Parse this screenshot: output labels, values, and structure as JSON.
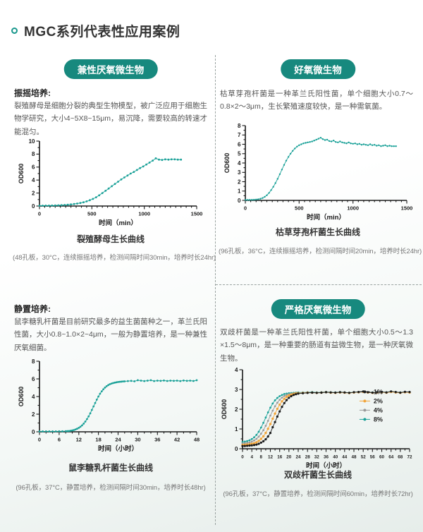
{
  "page": {
    "title": "MGC系列代表性应用案例"
  },
  "colors": {
    "teal": "#17897e",
    "curve_teal": "#1aa198",
    "orange": "#f2a53a",
    "gray": "#999999",
    "black": "#1a1a1a"
  },
  "sections": {
    "facultative": {
      "badge": "兼性厌氧微生物",
      "heading": "振摇培养:",
      "body": "裂殖酵母是细胞分裂的典型生物模型，被广泛应用于细胞生物学研究，大小4~5X8~15μm，易沉降，需要较高的转速才能混匀。",
      "caption": "裂殖酵母生长曲线",
      "note": "(48孔板，30°C，连续振摇培养，检测间隔时间30min，培养时长24hr)"
    },
    "aerobic": {
      "badge": "好氧微生物",
      "body": "枯草芽孢杆菌是一种革兰氏阳性菌，单个细胞大小0.7～0.8×2～3μm，生长繁殖速度较快，是一种需氧菌。",
      "caption": "枯草芽孢杆菌生长曲线",
      "note": "(96孔板，36°C，连续振摇培养，检测间隔时间20min，培养时长24hr)"
    },
    "static_culture": {
      "heading": "静置培养:",
      "body": "鼠李糖乳杆菌是目前研究最多的益生菌菌种之一，革兰氏阳性菌，大小0.8~1.0×2~4μm，一般为静置培养，是一种兼性厌氧细菌。",
      "caption": "鼠李糖乳杆菌生长曲线",
      "note": "(96孔板，37°C，静置培养，检测间隔时间30min，培养时长48hr)"
    },
    "anaerobic": {
      "badge": "严格厌氧微生物",
      "body": "双歧杆菌是一种革兰氏阳性杆菌，单个细胞大小0.5～1.3 ×1.5～8μm，是一种重要的肠道有益微生物，是一种厌氧微生物。",
      "caption": "双歧杆菌生长曲线",
      "note": "(96孔板，37°C，静置培养，检测间隔时间60min，培养时长72hr)"
    }
  },
  "chart_data": [
    {
      "id": "fission-yeast",
      "type": "scatter",
      "title": "裂殖酵母生长曲线",
      "xlabel": "时间（min）",
      "ylabel": "OD600",
      "xlim": [
        0,
        1500
      ],
      "ylim": [
        0,
        10
      ],
      "xmajor": 500,
      "xminor": 50,
      "ymajor": 2,
      "yminor": 1,
      "legend": false,
      "series": [
        {
          "name": "OD600",
          "color": "#1aa198",
          "r": 1.4,
          "x": [
            0,
            30,
            60,
            90,
            120,
            150,
            180,
            210,
            240,
            270,
            300,
            330,
            360,
            390,
            420,
            450,
            480,
            510,
            540,
            570,
            600,
            630,
            660,
            690,
            720,
            750,
            780,
            810,
            840,
            870,
            900,
            930,
            960,
            990,
            1020,
            1050,
            1080,
            1110,
            1140,
            1170,
            1200,
            1230,
            1260,
            1290,
            1320,
            1350
          ],
          "y": [
            0.05,
            0.05,
            0.06,
            0.07,
            0.08,
            0.09,
            0.11,
            0.13,
            0.16,
            0.2,
            0.25,
            0.31,
            0.38,
            0.47,
            0.58,
            0.72,
            0.9,
            1.1,
            1.35,
            1.65,
            2.0,
            2.35,
            2.7,
            3.05,
            3.4,
            3.75,
            4.1,
            4.4,
            4.7,
            5.0,
            5.25,
            5.55,
            5.85,
            6.1,
            6.4,
            6.7,
            7.0,
            7.35,
            7.15,
            7.1,
            7.2,
            7.15,
            7.2,
            7.2,
            7.15,
            7.15
          ]
        }
      ]
    },
    {
      "id": "bacillus-subtilis",
      "type": "scatter",
      "title": "枯草芽孢杆菌生长曲线",
      "xlabel": "时间（min）",
      "ylabel": "OD600",
      "xlim": [
        0,
        1500
      ],
      "ylim": [
        0,
        8
      ],
      "xmajor": 500,
      "xminor": 50,
      "ymajor": 1,
      "yminor": 0.5,
      "legend": false,
      "series": [
        {
          "name": "OD600",
          "color": "#1aa198",
          "r": 1.2,
          "x": [
            0,
            20,
            40,
            60,
            80,
            100,
            120,
            140,
            160,
            180,
            200,
            220,
            240,
            260,
            280,
            300,
            320,
            340,
            360,
            380,
            400,
            420,
            440,
            460,
            480,
            500,
            520,
            540,
            560,
            580,
            600,
            620,
            640,
            660,
            680,
            700,
            720,
            740,
            760,
            780,
            800,
            820,
            840,
            860,
            880,
            900,
            920,
            940,
            960,
            980,
            1000,
            1020,
            1040,
            1060,
            1080,
            1100,
            1120,
            1140,
            1160,
            1180,
            1200,
            1220,
            1240,
            1260,
            1280,
            1300,
            1320,
            1340,
            1360,
            1380,
            1400
          ],
          "y": [
            0.05,
            0.05,
            0.05,
            0.06,
            0.07,
            0.09,
            0.12,
            0.17,
            0.25,
            0.38,
            0.55,
            0.8,
            1.1,
            1.45,
            1.85,
            2.3,
            2.8,
            3.3,
            3.8,
            4.25,
            4.65,
            5.0,
            5.3,
            5.55,
            5.75,
            5.9,
            6.0,
            6.1,
            6.15,
            6.2,
            6.25,
            6.3,
            6.4,
            6.5,
            6.6,
            6.7,
            6.55,
            6.45,
            6.5,
            6.35,
            6.3,
            6.4,
            6.25,
            6.2,
            6.3,
            6.2,
            6.15,
            6.1,
            6.2,
            6.1,
            6.05,
            6.1,
            6.0,
            6.05,
            5.95,
            6.0,
            5.95,
            5.9,
            6.0,
            5.9,
            5.95,
            5.85,
            5.9,
            5.8,
            5.85,
            5.9,
            5.8,
            5.85,
            5.8,
            5.8,
            5.8
          ]
        }
      ]
    },
    {
      "id": "lactobacillus-rhamnosus",
      "type": "scatter",
      "title": "鼠李糖乳杆菌生长曲线",
      "xlabel": "时间（小时）",
      "ylabel": "OD600",
      "xlim": [
        0,
        48
      ],
      "ylim": [
        0,
        8
      ],
      "xmajor": 6,
      "xminor": 2,
      "ymajor": 2,
      "yminor": 1,
      "legend": false,
      "series": [
        {
          "name": "OD600",
          "color": "#1aa198",
          "r": 1.4,
          "x": [
            0,
            1,
            2,
            3,
            4,
            5,
            6,
            7,
            8,
            8.5,
            9,
            9.5,
            10,
            10.5,
            11,
            11.5,
            12,
            12.5,
            13,
            13.5,
            14,
            14.5,
            15,
            15.5,
            16,
            16.5,
            17,
            17.5,
            18,
            18.5,
            19,
            19.5,
            20,
            20.5,
            21,
            21.5,
            22,
            22.5,
            23,
            23.5,
            24,
            24.5,
            25,
            25.5,
            26,
            27,
            28,
            29,
            30,
            31,
            32,
            33,
            34,
            35,
            36,
            37,
            38,
            39,
            40,
            41,
            42,
            43,
            44,
            45,
            46,
            47,
            48
          ],
          "y": [
            0.05,
            0.05,
            0.05,
            0.05,
            0.05,
            0.05,
            0.06,
            0.06,
            0.07,
            0.08,
            0.09,
            0.12,
            0.16,
            0.2,
            0.27,
            0.35,
            0.45,
            0.58,
            0.73,
            0.93,
            1.16,
            1.44,
            1.75,
            2.1,
            2.48,
            2.88,
            3.27,
            3.65,
            4.0,
            4.32,
            4.59,
            4.82,
            5.02,
            5.17,
            5.3,
            5.4,
            5.47,
            5.53,
            5.58,
            5.62,
            5.65,
            5.67,
            5.69,
            5.71,
            5.72,
            5.75,
            5.78,
            5.73,
            5.85,
            5.8,
            5.75,
            5.8,
            5.85,
            5.75,
            5.8,
            5.78,
            5.82,
            5.76,
            5.8,
            5.78,
            5.8,
            5.75,
            5.82,
            5.78,
            5.8,
            5.76,
            5.85
          ]
        }
      ]
    },
    {
      "id": "bifidobacterium",
      "type": "scatter",
      "title": "双歧杆菌生长曲线",
      "xlabel": "时间（小时）",
      "ylabel": "OD600",
      "xlim": [
        0,
        72
      ],
      "ylim": [
        0,
        4
      ],
      "xmajor": 4,
      "xminor": 2,
      "ymajor": 1,
      "yminor": 0.5,
      "legend": true,
      "x_shared": [
        0,
        1,
        2,
        3,
        4,
        5,
        6,
        7,
        8,
        9,
        10,
        11,
        12,
        13,
        14,
        15,
        16,
        17,
        18,
        19,
        20,
        21,
        22,
        23,
        24,
        26,
        28,
        30,
        32,
        34,
        36,
        38,
        40,
        42,
        44,
        46,
        48,
        50,
        52,
        54,
        56,
        58,
        60,
        62,
        64,
        66,
        68,
        70,
        72
      ],
      "series": [
        {
          "name": "1%",
          "color": "#1a1a1a",
          "r": 1.6,
          "x": [
            0,
            1,
            2,
            3,
            4,
            5,
            6,
            7,
            8,
            9,
            10,
            11,
            12,
            13,
            14,
            15,
            16,
            17,
            18,
            19,
            20,
            21,
            22,
            23,
            24,
            26,
            28,
            30,
            32,
            34,
            36,
            38,
            40,
            42,
            44,
            46,
            48,
            50,
            52,
            54,
            56,
            58,
            60,
            62,
            64,
            66,
            68,
            70,
            72
          ],
          "y": [
            0.14,
            0.14,
            0.15,
            0.16,
            0.17,
            0.19,
            0.21,
            0.25,
            0.31,
            0.38,
            0.48,
            0.62,
            0.8,
            1.09,
            1.35,
            1.63,
            1.89,
            2.12,
            2.31,
            2.46,
            2.58,
            2.66,
            2.72,
            2.76,
            2.79,
            2.81,
            2.83,
            2.84,
            2.83,
            2.84,
            2.86,
            2.85,
            2.84,
            2.86,
            2.85,
            2.83,
            2.86,
            2.87,
            2.9,
            2.86,
            2.84,
            2.86,
            2.88,
            2.85,
            2.9,
            2.87,
            2.84,
            2.88,
            2.87
          ]
        },
        {
          "name": "2%",
          "color": "#f2a53a",
          "r": 1.7,
          "x": [
            0,
            1,
            2,
            3,
            4,
            5,
            6,
            7,
            8,
            9,
            10,
            11,
            12,
            13,
            14,
            15,
            16,
            17,
            18,
            19,
            20,
            21,
            22,
            23,
            24,
            26,
            28,
            30,
            32,
            34,
            36,
            38,
            40,
            42,
            44,
            46,
            48,
            50,
            52,
            54,
            56,
            58,
            60,
            62,
            64,
            66,
            68,
            70,
            72
          ],
          "y": [
            0.19,
            0.2,
            0.21,
            0.23,
            0.25,
            0.28,
            0.33,
            0.4,
            0.5,
            0.63,
            0.8,
            1.01,
            1.25,
            1.52,
            1.78,
            2.02,
            2.23,
            2.4,
            2.53,
            2.63,
            2.7,
            2.74,
            2.78,
            2.8,
            2.81,
            2.82,
            2.84,
            2.84,
            2.83,
            2.84,
            2.86,
            2.84,
            2.83,
            2.85,
            2.84,
            2.82,
            2.85,
            2.86,
            2.88,
            2.85,
            2.83,
            2.85,
            2.86,
            2.84,
            2.88,
            2.85,
            2.83,
            2.86,
            2.85
          ]
        },
        {
          "name": "4%",
          "color": "#999999",
          "r": 1.4,
          "x": [
            0,
            1,
            2,
            3,
            4,
            5,
            6,
            7,
            8,
            9,
            10,
            11,
            12,
            13,
            14,
            15,
            16,
            17,
            18,
            19,
            20,
            21,
            22,
            23,
            24,
            26,
            28,
            30,
            32,
            34,
            36,
            38,
            40,
            42,
            44,
            46,
            48,
            50,
            52,
            54,
            56,
            58,
            60,
            62,
            64,
            66,
            68,
            70,
            72
          ],
          "y": [
            0.27,
            0.28,
            0.3,
            0.32,
            0.36,
            0.42,
            0.5,
            0.61,
            0.76,
            0.94,
            1.16,
            1.41,
            1.68,
            1.93,
            2.15,
            2.33,
            2.48,
            2.59,
            2.67,
            2.73,
            2.76,
            2.79,
            2.8,
            2.82,
            2.83,
            2.84,
            2.85,
            2.85,
            2.84,
            2.85,
            2.87,
            2.85,
            2.84,
            2.86,
            2.84,
            2.83,
            2.85,
            2.87,
            2.89,
            2.85,
            2.84,
            2.86,
            2.87,
            2.85,
            2.89,
            2.86,
            2.84,
            2.87,
            2.86
          ]
        },
        {
          "name": "8%",
          "color": "#1aa198",
          "r": 1.4,
          "x": [
            0,
            1,
            2,
            3,
            4,
            5,
            6,
            7,
            8,
            9,
            10,
            11,
            12,
            13,
            14,
            15,
            16,
            17,
            18,
            19,
            20,
            21,
            22,
            23,
            24,
            26,
            28,
            30,
            32,
            34,
            36,
            38,
            40,
            42,
            44,
            46,
            48,
            50,
            52,
            54,
            56,
            58,
            60,
            62,
            64,
            66,
            68,
            70,
            72
          ],
          "y": [
            0.34,
            0.36,
            0.39,
            0.43,
            0.49,
            0.58,
            0.7,
            0.86,
            1.07,
            1.31,
            1.58,
            1.84,
            2.08,
            2.29,
            2.45,
            2.57,
            2.66,
            2.72,
            2.77,
            2.79,
            2.81,
            2.82,
            2.83,
            2.84,
            2.85,
            2.85,
            2.86,
            2.87,
            2.85,
            2.86,
            2.88,
            2.86,
            2.85,
            2.87,
            2.85,
            2.84,
            2.86,
            2.88,
            2.9,
            2.86,
            2.85,
            2.87,
            2.88,
            2.86,
            2.9,
            2.87,
            2.85,
            2.88,
            2.87
          ]
        }
      ]
    }
  ]
}
